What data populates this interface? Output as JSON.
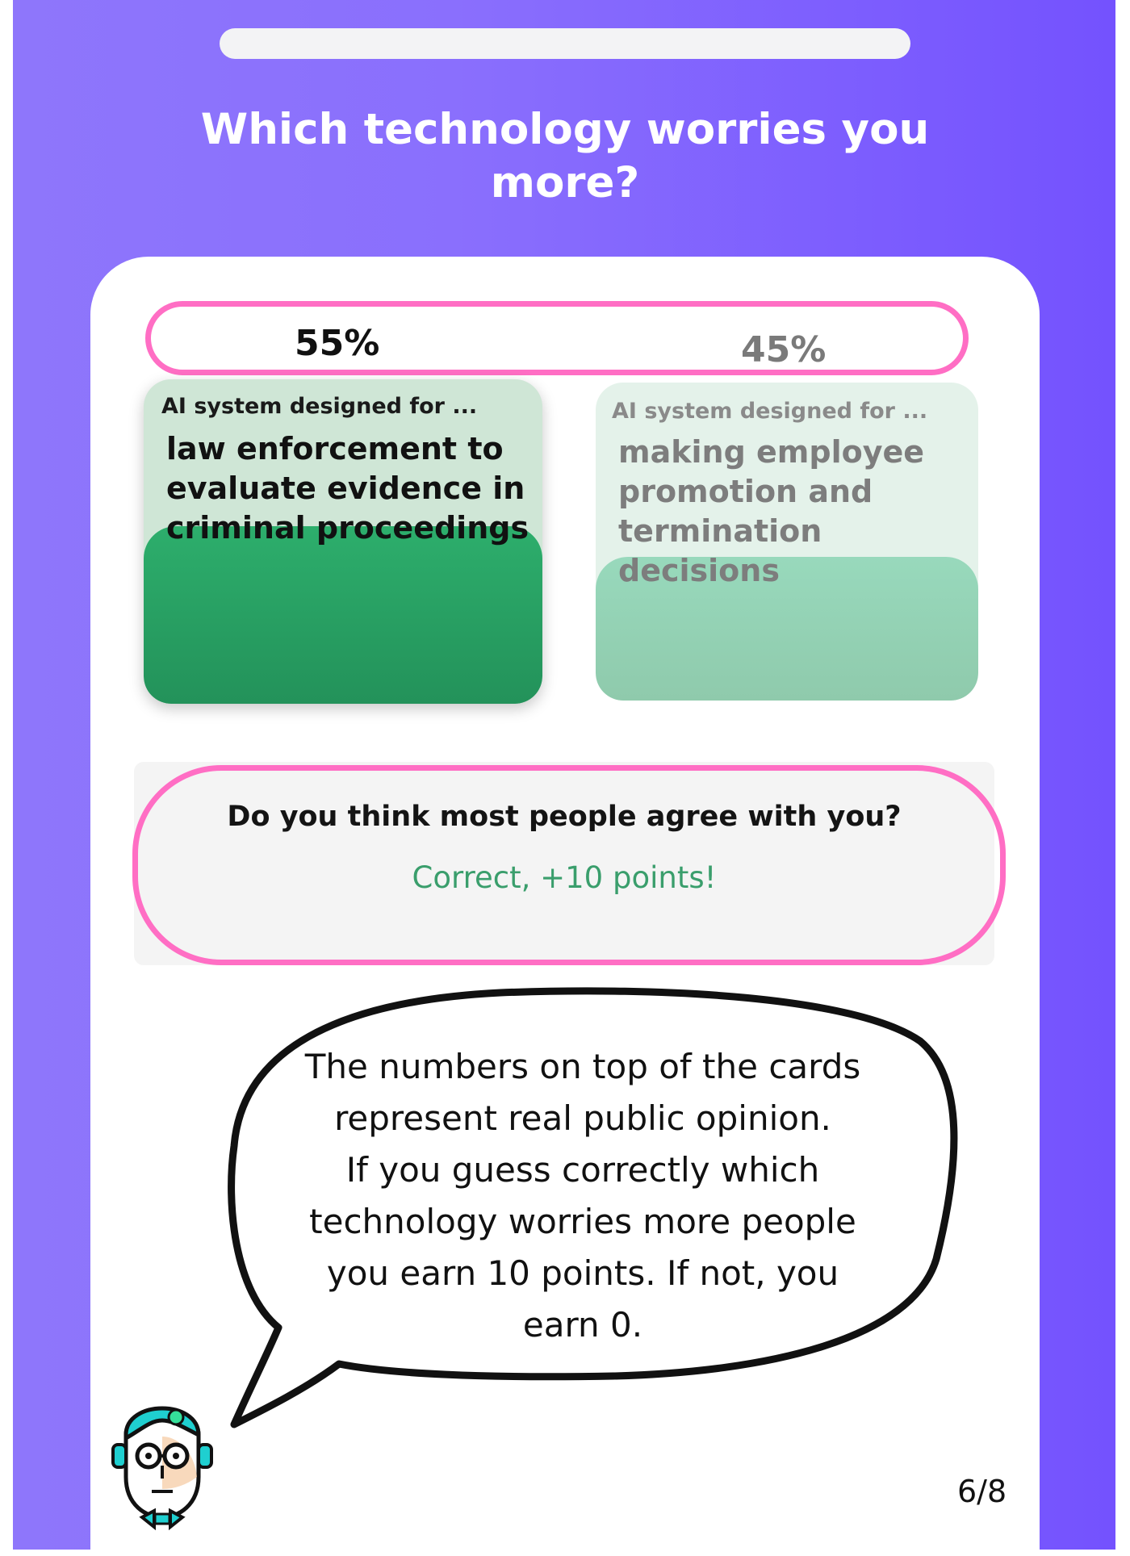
{
  "question": "Which technology worries you more?",
  "options": [
    {
      "percent_label": "55%",
      "percent": 55,
      "label": "AI system designed for ...",
      "description": "law enforcement to evaluate evidence in criminal proceedings",
      "selected": true
    },
    {
      "percent_label": "45%",
      "percent": 45,
      "label": "AI system designed for ...",
      "description": "making employee promotion and termination decisions",
      "selected": false
    }
  ],
  "agree": {
    "question": "Do you think most people agree with you?",
    "result": "Correct, +10 points!"
  },
  "tutorial": {
    "lines": [
      "The numbers on top of the cards",
      "represent real public opinion.",
      "If you guess correctly which",
      "technology worries more people",
      "you earn 10 points. If not, you",
      "earn 0."
    ]
  },
  "page_indicator": "6/8",
  "colors": {
    "background_start": "#8e76fb",
    "background_end": "#7452fe",
    "highlight_ring": "#ff6ec4",
    "selected_card": "#2dae6c",
    "correct_text": "#3a9e6c"
  },
  "icons": {
    "avatar": "robot-avatar-icon"
  }
}
